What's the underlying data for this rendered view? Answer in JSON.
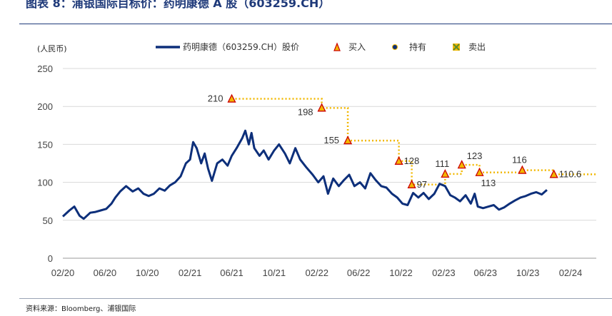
{
  "figure": {
    "title": "图表 8：浦银国际目标价：药明康德 A 股（603259.CH）",
    "source": "资料来源：Bloomberg、浦银国际"
  },
  "chart_data": {
    "type": "line",
    "ylabel": "(人民币)",
    "ylim": [
      0,
      250
    ],
    "yticks": [
      0,
      50,
      100,
      150,
      200,
      250
    ],
    "xlim": [
      "2020-02-01",
      "2024-04-15"
    ],
    "xtick_labels": [
      {
        "date": "2020-02-01",
        "label": "02/20"
      },
      {
        "date": "2020-06-01",
        "label": "06/20"
      },
      {
        "date": "2020-10-01",
        "label": "10/20"
      },
      {
        "date": "2021-02-01",
        "label": "02/21"
      },
      {
        "date": "2021-06-01",
        "label": "06/21"
      },
      {
        "date": "2021-10-01",
        "label": "10/21"
      },
      {
        "date": "2022-02-01",
        "label": "02/22"
      },
      {
        "date": "2022-06-01",
        "label": "06/22"
      },
      {
        "date": "2022-10-01",
        "label": "10/22"
      },
      {
        "date": "2023-02-01",
        "label": "02/23"
      },
      {
        "date": "2023-06-01",
        "label": "06/23"
      },
      {
        "date": "2023-10-01",
        "label": "10/23"
      },
      {
        "date": "2024-02-01",
        "label": "02/24"
      }
    ],
    "grid": "horizontal",
    "legend": {
      "placement": "top",
      "items": [
        {
          "label": "药明康德（603259.CH）股价",
          "marker": "line",
          "color": "#0d2f7a"
        },
        {
          "label": "买入",
          "marker": "triangle",
          "color": "#cc0000",
          "fill": "#f2b800"
        },
        {
          "label": "持有",
          "marker": "circle",
          "color": "#0d2f7a",
          "fill": "#f2b800"
        },
        {
          "label": "卖出",
          "marker": "x-square",
          "color": "#5b8c2a",
          "fill": "#f2b800"
        }
      ]
    },
    "price_series": {
      "name": "药明康德（603259.CH）股价",
      "color": "#0d2f7a",
      "points": [
        [
          "2020-02-01",
          55
        ],
        [
          "2020-02-20",
          63
        ],
        [
          "2020-03-05",
          68
        ],
        [
          "2020-03-20",
          56
        ],
        [
          "2020-04-01",
          52
        ],
        [
          "2020-04-20",
          60
        ],
        [
          "2020-05-05",
          61
        ],
        [
          "2020-05-20",
          63
        ],
        [
          "2020-06-05",
          65
        ],
        [
          "2020-06-20",
          72
        ],
        [
          "2020-07-01",
          80
        ],
        [
          "2020-07-15",
          88
        ],
        [
          "2020-08-01",
          95
        ],
        [
          "2020-08-20",
          88
        ],
        [
          "2020-09-05",
          92
        ],
        [
          "2020-09-20",
          85
        ],
        [
          "2020-10-05",
          82
        ],
        [
          "2020-10-20",
          85
        ],
        [
          "2020-11-05",
          92
        ],
        [
          "2020-11-20",
          89
        ],
        [
          "2020-12-05",
          96
        ],
        [
          "2020-12-20",
          100
        ],
        [
          "2021-01-05",
          108
        ],
        [
          "2021-01-20",
          125
        ],
        [
          "2021-02-01",
          130
        ],
        [
          "2021-02-10",
          153
        ],
        [
          "2021-02-20",
          145
        ],
        [
          "2021-03-05",
          125
        ],
        [
          "2021-03-15",
          138
        ],
        [
          "2021-03-25",
          118
        ],
        [
          "2021-04-05",
          102
        ],
        [
          "2021-04-20",
          125
        ],
        [
          "2021-05-05",
          130
        ],
        [
          "2021-05-20",
          122
        ],
        [
          "2021-06-01",
          135
        ],
        [
          "2021-06-15",
          145
        ],
        [
          "2021-07-01",
          158
        ],
        [
          "2021-07-10",
          168
        ],
        [
          "2021-07-20",
          150
        ],
        [
          "2021-07-28",
          165
        ],
        [
          "2021-08-05",
          145
        ],
        [
          "2021-08-20",
          135
        ],
        [
          "2021-09-01",
          142
        ],
        [
          "2021-09-15",
          130
        ],
        [
          "2021-10-01",
          142
        ],
        [
          "2021-10-15",
          150
        ],
        [
          "2021-11-01",
          138
        ],
        [
          "2021-11-15",
          125
        ],
        [
          "2021-12-01",
          145
        ],
        [
          "2021-12-15",
          130
        ],
        [
          "2022-01-01",
          120
        ],
        [
          "2022-01-20",
          110
        ],
        [
          "2022-02-05",
          100
        ],
        [
          "2022-02-20",
          108
        ],
        [
          "2022-03-05",
          85
        ],
        [
          "2022-03-20",
          105
        ],
        [
          "2022-04-05",
          95
        ],
        [
          "2022-04-20",
          103
        ],
        [
          "2022-05-05",
          110
        ],
        [
          "2022-05-20",
          95
        ],
        [
          "2022-06-05",
          100
        ],
        [
          "2022-06-20",
          92
        ],
        [
          "2022-07-05",
          112
        ],
        [
          "2022-07-20",
          103
        ],
        [
          "2022-08-05",
          95
        ],
        [
          "2022-08-20",
          93
        ],
        [
          "2022-09-05",
          85
        ],
        [
          "2022-09-20",
          80
        ],
        [
          "2022-10-05",
          72
        ],
        [
          "2022-10-20",
          70
        ],
        [
          "2022-11-05",
          86
        ],
        [
          "2022-11-20",
          80
        ],
        [
          "2022-12-05",
          86
        ],
        [
          "2022-12-20",
          78
        ],
        [
          "2023-01-05",
          85
        ],
        [
          "2023-01-20",
          98
        ],
        [
          "2023-02-05",
          95
        ],
        [
          "2023-02-20",
          83
        ],
        [
          "2023-03-05",
          80
        ],
        [
          "2023-03-20",
          75
        ],
        [
          "2023-04-05",
          83
        ],
        [
          "2023-04-20",
          72
        ],
        [
          "2023-05-01",
          85
        ],
        [
          "2023-05-10",
          68
        ],
        [
          "2023-05-25",
          66
        ],
        [
          "2023-06-10",
          68
        ],
        [
          "2023-06-25",
          70
        ],
        [
          "2023-07-10",
          64
        ],
        [
          "2023-07-25",
          67
        ],
        [
          "2023-08-10",
          72
        ],
        [
          "2023-08-25",
          76
        ],
        [
          "2023-09-10",
          80
        ],
        [
          "2023-09-25",
          82
        ],
        [
          "2023-10-10",
          85
        ],
        [
          "2023-10-25",
          87
        ],
        [
          "2023-11-10",
          84
        ],
        [
          "2023-11-25",
          90
        ]
      ]
    },
    "target_price_line": {
      "color": "#f2b800",
      "end_date": "2024-04-15",
      "steps": [
        [
          "2021-06-01",
          210
        ],
        [
          "2022-02-15",
          198
        ],
        [
          "2022-05-01",
          155
        ],
        [
          "2022-09-25",
          128
        ],
        [
          "2022-11-01",
          97
        ],
        [
          "2023-02-05",
          111
        ],
        [
          "2023-03-25",
          123
        ],
        [
          "2023-05-15",
          113
        ],
        [
          "2023-09-15",
          116
        ],
        [
          "2023-12-15",
          110.6
        ]
      ]
    },
    "ratings": [
      {
        "date": "2021-06-01",
        "target": 210,
        "rating": "买入",
        "label": "210",
        "label_pos": "left"
      },
      {
        "date": "2022-02-15",
        "target": 198,
        "rating": "买入",
        "label": "198",
        "label_pos": "left-below"
      },
      {
        "date": "2022-05-01",
        "target": 155,
        "rating": "买入",
        "label": "155",
        "label_pos": "left"
      },
      {
        "date": "2022-09-25",
        "target": 128,
        "rating": "买入",
        "label": "128",
        "label_pos": "right"
      },
      {
        "date": "2022-11-01",
        "target": 97,
        "rating": "买入",
        "label": "97",
        "label_pos": "right"
      },
      {
        "date": "2023-02-05",
        "target": 111,
        "rating": "买入",
        "label": "111",
        "label_pos": "above"
      },
      {
        "date": "2023-03-25",
        "target": 123,
        "rating": "买入",
        "label": "123",
        "label_pos": "above-right"
      },
      {
        "date": "2023-05-15",
        "target": 113,
        "rating": "买入",
        "label": "113",
        "label_pos": "below-right"
      },
      {
        "date": "2023-09-15",
        "target": 116,
        "rating": "买入",
        "label": "116",
        "label_pos": "above"
      },
      {
        "date": "2023-12-15",
        "target": 110.6,
        "rating": "买入",
        "label": "110.6",
        "label_pos": "right"
      }
    ]
  }
}
